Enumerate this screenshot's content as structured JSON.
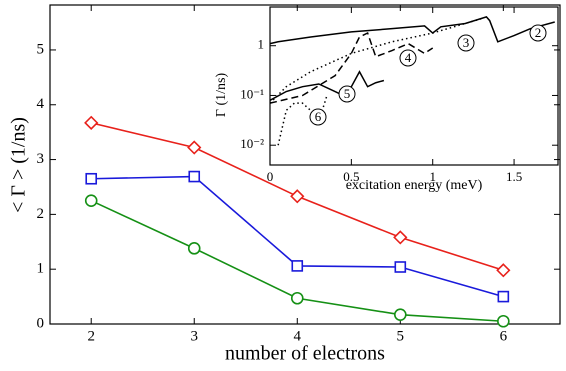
{
  "chart_data": [
    {
      "type": "line",
      "x_label": "number of electrons",
      "y_label": "< Γ >  (1/ns)",
      "x": [
        2,
        3,
        4,
        5,
        6
      ],
      "xlim": [
        1.6,
        6.55
      ],
      "xticks": [
        2,
        3,
        4,
        5,
        6
      ],
      "ylim": [
        0,
        5.82
      ],
      "yticks": [
        0,
        1,
        2,
        3,
        4,
        5
      ],
      "series": [
        {
          "color": "#e8211b",
          "marker": "diamond",
          "values": [
            3.67,
            3.22,
            2.33,
            1.58,
            0.98
          ]
        },
        {
          "color": "#1a1adb",
          "marker": "square",
          "values": [
            2.65,
            2.69,
            1.06,
            1.04,
            0.5
          ]
        },
        {
          "color": "#159015",
          "marker": "circle",
          "values": [
            2.25,
            1.38,
            0.47,
            0.17,
            0.05
          ]
        }
      ]
    },
    {
      "type": "line",
      "x_label": "excitation energy (meV)",
      "y_label": "Γ  (1/ns)",
      "log_y": true,
      "xlim": [
        0,
        1.77
      ],
      "xticks": [
        0,
        0.5,
        1,
        1.5
      ],
      "ylim": [
        0.004,
        6
      ],
      "yticks": [
        1,
        {
          "value": 0.1,
          "label": "10⁻¹"
        },
        {
          "value": 0.01,
          "label": "10⁻²"
        }
      ],
      "series": [
        {
          "name": "2",
          "color": "#000000",
          "dash": "solid",
          "x": [
            0,
            0.05,
            0.25,
            0.5,
            0.75,
            0.95,
            1.0,
            1.05,
            1.2,
            1.33,
            1.35,
            1.4,
            1.5,
            1.6,
            1.75
          ],
          "values": [
            1.1,
            1.2,
            1.5,
            1.9,
            2.2,
            2.5,
            1.8,
            2.4,
            2.8,
            3.8,
            3.2,
            1.2,
            1.6,
            2.2,
            3.0
          ]
        },
        {
          "name": "3",
          "color": "#000000",
          "dash": "dotted",
          "x": [
            0,
            0.1,
            0.25,
            0.5,
            0.75,
            1.0,
            1.2,
            1.3
          ],
          "values": [
            0.07,
            0.15,
            0.3,
            0.7,
            1.2,
            1.8,
            2.8,
            3.5
          ]
        },
        {
          "name": "4",
          "color": "#000000",
          "dash": "dashed",
          "x": [
            0,
            0.2,
            0.4,
            0.5,
            0.55,
            0.6,
            0.65,
            0.75,
            0.85,
            0.95,
            1.0
          ],
          "values": [
            0.07,
            0.1,
            0.25,
            0.7,
            1.5,
            1.8,
            0.6,
            0.8,
            1.1,
            0.7,
            0.9
          ]
        },
        {
          "name": "5",
          "color": "#000000",
          "dash": "solid",
          "x": [
            0,
            0.1,
            0.2,
            0.3,
            0.4,
            0.45,
            0.5,
            0.55,
            0.6,
            0.65,
            0.7
          ],
          "values": [
            0.08,
            0.12,
            0.15,
            0.17,
            0.12,
            0.1,
            0.15,
            0.3,
            0.15,
            0.18,
            0.2
          ]
        },
        {
          "name": "6",
          "color": "#000000",
          "dash": "dotted",
          "x": [
            0.05,
            0.1,
            0.15,
            0.2,
            0.25,
            0.3,
            0.35
          ],
          "values": [
            0.01,
            0.05,
            0.07,
            0.07,
            0.05,
            0.03,
            0.1
          ]
        }
      ]
    }
  ]
}
